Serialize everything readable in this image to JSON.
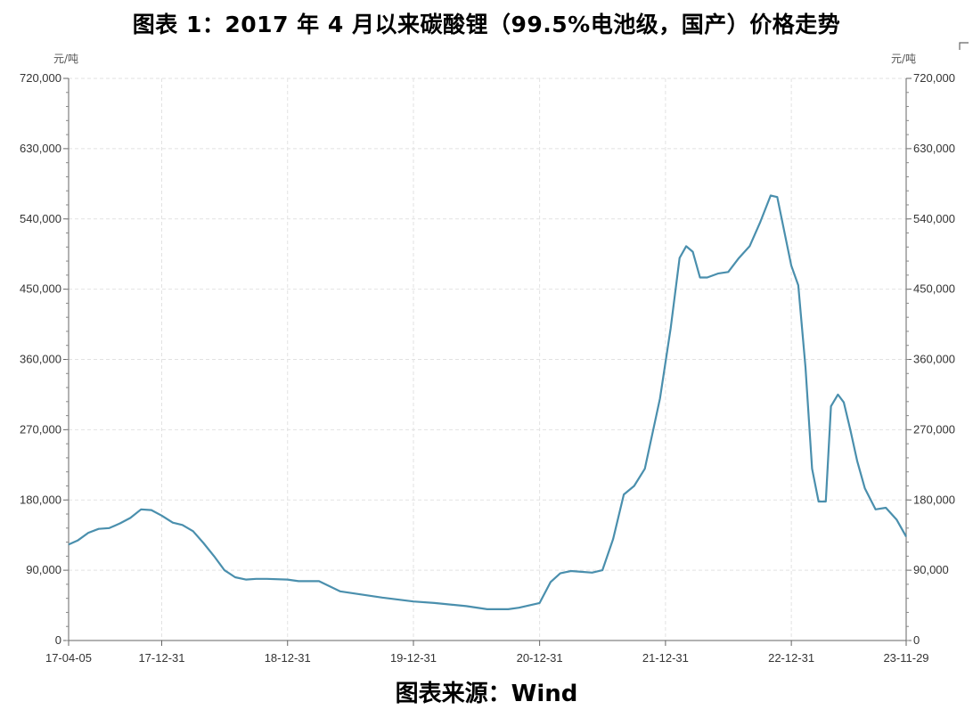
{
  "title": "图表 1：2017 年 4 月以来碳酸锂（99.5%电池级，国产）价格走势",
  "source": "图表来源：Wind",
  "chart_data": {
    "type": "line",
    "title": "图表 1：2017 年 4 月以来碳酸锂（99.5%电池级，国产）价格走势",
    "ylabel_left": "元/吨",
    "ylabel_right": "元/吨",
    "ylim": [
      0,
      720000
    ],
    "yticks": [
      0,
      90000,
      180000,
      270000,
      360000,
      450000,
      540000,
      630000,
      720000
    ],
    "ytick_labels": [
      "0",
      "90,000",
      "180,000",
      "270,000",
      "360,000",
      "450,000",
      "540,000",
      "630,000",
      "720,000"
    ],
    "xlim": [
      "2017-04-05",
      "2023-11-29"
    ],
    "xtick_labels": [
      "17-04-05",
      "17-12-31",
      "18-12-31",
      "19-12-31",
      "20-12-31",
      "21-12-31",
      "22-12-31",
      "23-11-29"
    ],
    "xtick_dates": [
      "2017-04-05",
      "2017-12-31",
      "2018-12-31",
      "2019-12-31",
      "2020-12-31",
      "2021-12-31",
      "2022-12-31",
      "2023-11-29"
    ],
    "grid": true,
    "line_color": "#4a8fad",
    "series": [
      {
        "x": [
          "2017-04-05",
          "2017-05-01",
          "2017-06-01",
          "2017-07-01",
          "2017-08-01",
          "2017-09-01",
          "2017-10-01",
          "2017-11-01",
          "2017-12-01",
          "2017-12-31",
          "2018-02-01",
          "2018-03-01",
          "2018-04-01",
          "2018-05-01",
          "2018-06-01",
          "2018-07-01",
          "2018-08-01",
          "2018-09-01",
          "2018-10-01",
          "2018-11-01",
          "2018-12-31",
          "2019-02-01",
          "2019-04-01",
          "2019-06-01",
          "2019-08-01",
          "2019-10-01",
          "2019-12-31",
          "2020-03-01",
          "2020-06-01",
          "2020-08-01",
          "2020-10-01",
          "2020-11-01",
          "2020-12-31",
          "2021-02-01",
          "2021-03-01",
          "2021-04-01",
          "2021-05-01",
          "2021-06-01",
          "2021-07-01",
          "2021-08-01",
          "2021-09-01",
          "2021-10-01",
          "2021-11-01",
          "2021-12-15",
          "2022-01-15",
          "2022-02-10",
          "2022-03-01",
          "2022-03-20",
          "2022-04-10",
          "2022-05-01",
          "2022-06-01",
          "2022-07-01",
          "2022-08-01",
          "2022-09-01",
          "2022-10-01",
          "2022-11-01",
          "2022-11-20",
          "2022-12-31",
          "2023-01-20",
          "2023-02-10",
          "2023-03-01",
          "2023-03-20",
          "2023-04-10",
          "2023-04-25",
          "2023-05-15",
          "2023-06-01",
          "2023-06-20",
          "2023-07-10",
          "2023-08-01",
          "2023-09-01",
          "2023-10-01",
          "2023-11-01",
          "2023-11-29"
        ],
        "values": [
          123000,
          128000,
          138000,
          143000,
          144000,
          150000,
          157000,
          168000,
          167000,
          160000,
          151000,
          148000,
          140000,
          125000,
          108000,
          90000,
          81000,
          78000,
          79000,
          79000,
          78000,
          76000,
          76000,
          63000,
          59000,
          55000,
          50000,
          48000,
          44000,
          40000,
          40000,
          42000,
          48000,
          75000,
          86000,
          89000,
          88000,
          87000,
          90000,
          130000,
          187000,
          198000,
          220000,
          310000,
          400000,
          490000,
          505000,
          498000,
          465000,
          465000,
          470000,
          472000,
          490000,
          505000,
          535000,
          570000,
          568000,
          480000,
          455000,
          350000,
          220000,
          178000,
          178000,
          300000,
          315000,
          305000,
          270000,
          230000,
          195000,
          168000,
          170000,
          155000,
          133000
        ]
      }
    ]
  }
}
